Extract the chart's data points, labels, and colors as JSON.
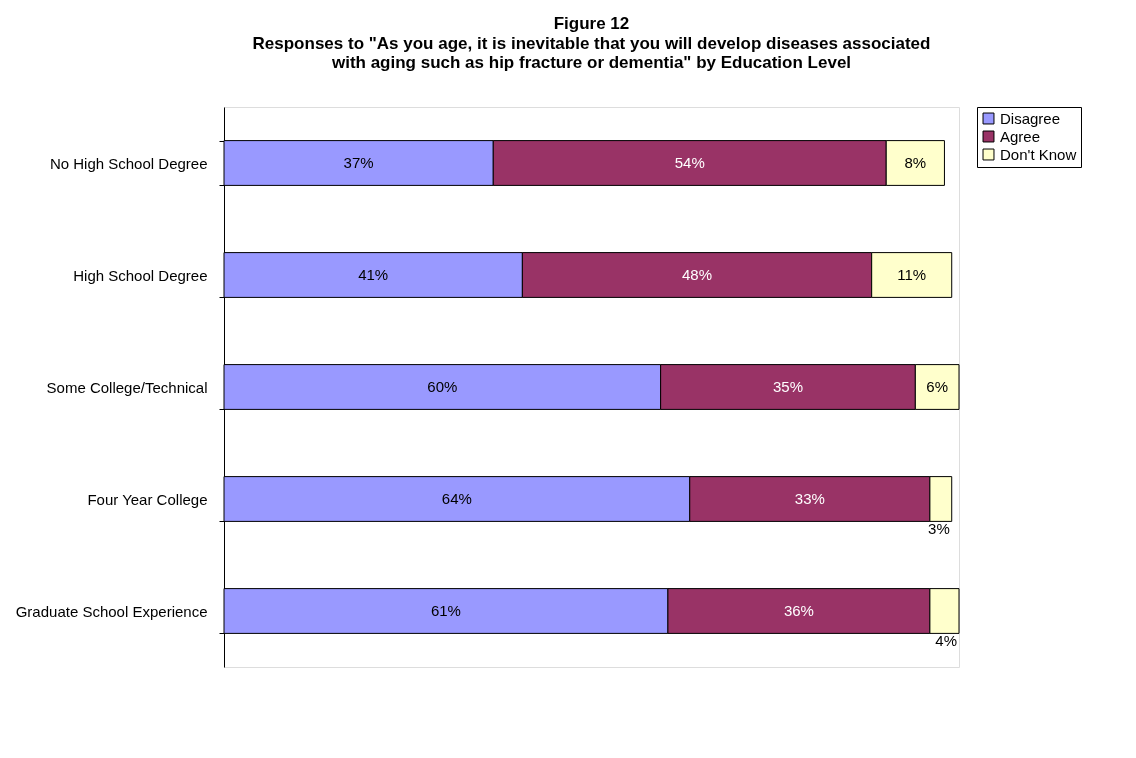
{
  "chart_data": {
    "type": "bar",
    "orientation": "horizontal",
    "stacked": true,
    "legend": "right",
    "title": "Figure 12",
    "subtitle": "Responses to \"As you age, it is inevitable that you will develop diseases associated with aging such as hip fracture or dementia\" by Education Level",
    "categories": [
      "No High School Degree",
      "High School Degree",
      "Some College/Technical",
      "Four Year College",
      "Graduate School Experience"
    ],
    "series": [
      {
        "name": "Disagree",
        "color": "#9999ff",
        "values": [
          37,
          41,
          60,
          64,
          61
        ],
        "value_labels": [
          "37%",
          "41%",
          "60%",
          "64%",
          "61%"
        ]
      },
      {
        "name": "Agree",
        "color": "#993366",
        "values": [
          54,
          48,
          35,
          33,
          36
        ],
        "value_labels": [
          "54%",
          "48%",
          "35%",
          "33%",
          "36%"
        ]
      },
      {
        "name": "Don't Know",
        "color": "#ffffcc",
        "values": [
          8,
          11,
          6,
          3,
          4
        ],
        "value_labels": [
          "8%",
          "11%",
          "6%",
          "3%",
          "4%"
        ]
      }
    ]
  }
}
